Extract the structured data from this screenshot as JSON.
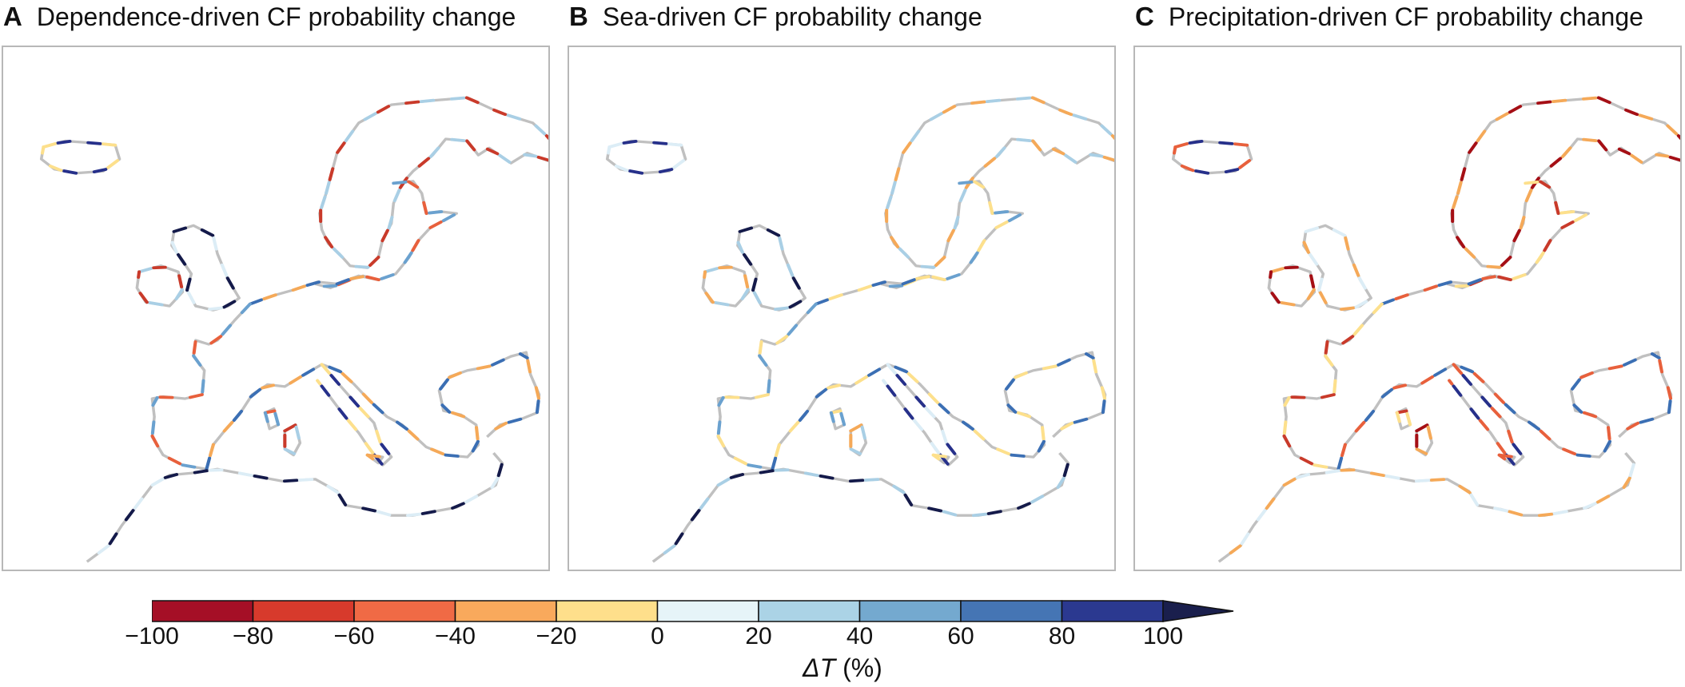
{
  "panels": [
    {
      "letter": "A",
      "title": "Dependence-driven CF probability change",
      "palette": [
        "#c93a2a",
        "#e8603c",
        "#f5a958",
        "#fde08c",
        "#dcedf6",
        "#a9cfe5",
        "#6aa1cf",
        "#3b6fb4",
        "#26308a",
        "#141a4a"
      ]
    },
    {
      "letter": "B",
      "title": "Sea-driven CF probability change",
      "palette": [
        "#f5a958",
        "#fde08c",
        "#fde08c",
        "#dcedf6",
        "#a9cfe5",
        "#a9cfe5",
        "#6aa1cf",
        "#3b6fb4",
        "#26308a",
        "#141a4a"
      ]
    },
    {
      "letter": "C",
      "title": "Precipitation-driven CF probability change",
      "palette": [
        "#a50f15",
        "#c93a2a",
        "#e8603c",
        "#e8603c",
        "#f5a958",
        "#f5a958",
        "#fde08c",
        "#3b6fb4",
        "#26308a",
        "#dcedf6"
      ]
    }
  ],
  "land_color": "#c0c0c0",
  "colorbar": {
    "ticks": [
      "−100",
      "−80",
      "−60",
      "−40",
      "−20",
      "0",
      "20",
      "40",
      "60",
      "80",
      "100"
    ],
    "colors": [
      "#a50f26",
      "#d73a2c",
      "#f06a45",
      "#f9a95c",
      "#fedf8b",
      "#e6f4f8",
      "#abd3e6",
      "#74a9cf",
      "#4575b4",
      "#2b3990"
    ],
    "extend_color": "#1a1f4d",
    "label_symbol": "ΔT",
    "label_unit": "(%)"
  }
}
